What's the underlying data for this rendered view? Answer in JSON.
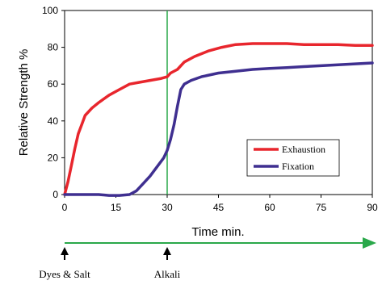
{
  "chart_data": {
    "type": "line",
    "xlabel": "Time min.",
    "ylabel": "Relative Strength %",
    "xlim": [
      0,
      90
    ],
    "ylim": [
      0,
      100
    ],
    "x_ticks": [
      0,
      15,
      30,
      45,
      60,
      75,
      90
    ],
    "y_ticks": [
      0,
      20,
      40,
      60,
      80,
      100
    ],
    "grid": false,
    "legend_position": "right",
    "series": [
      {
        "name": "Exhaustion",
        "color": "#e8262d",
        "x": [
          0,
          1,
          2,
          3,
          4,
          5,
          6,
          8,
          10,
          13,
          16,
          19,
          22,
          25,
          28,
          30,
          31,
          33,
          35,
          38,
          42,
          46,
          50,
          55,
          60,
          65,
          70,
          75,
          80,
          85,
          90
        ],
        "y": [
          0,
          7,
          16,
          25,
          33,
          38,
          43,
          47,
          50,
          54,
          57,
          60,
          61,
          62,
          63,
          64,
          66,
          68,
          72,
          75,
          78,
          80,
          81.5,
          82,
          82,
          82,
          81.5,
          81.5,
          81.5,
          81,
          81
        ]
      },
      {
        "name": "Fixation",
        "color": "#3f2f90",
        "x": [
          0,
          5,
          10,
          13,
          16,
          19,
          21,
          23,
          25,
          27,
          29,
          30,
          31,
          32,
          33,
          34,
          35,
          37,
          40,
          45,
          50,
          55,
          60,
          65,
          70,
          75,
          80,
          85,
          90
        ],
        "y": [
          0,
          0,
          0,
          -0.5,
          -0.5,
          0,
          2,
          6,
          10,
          15,
          20,
          24,
          30,
          38,
          48,
          57,
          60,
          62,
          64,
          66,
          67,
          68,
          68.5,
          69,
          69.5,
          70,
          70.5,
          71,
          71.5
        ]
      }
    ],
    "vertical_line": {
      "x": 30,
      "color": "#2aa84a"
    },
    "timeline": {
      "color": "#2aa84a",
      "markers": [
        {
          "x": 0,
          "label": "Dyes & Salt"
        },
        {
          "x": 30,
          "label": "Alkali"
        }
      ]
    }
  }
}
